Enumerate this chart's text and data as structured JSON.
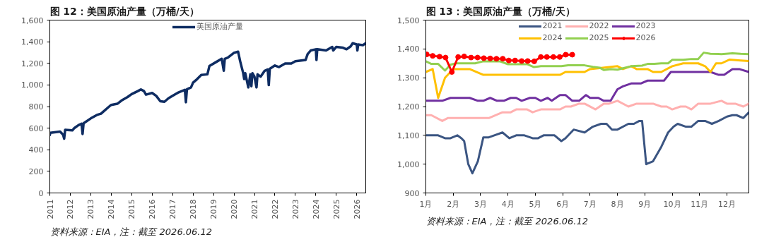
{
  "chart_data": [
    {
      "type": "line",
      "title": "图 12：美国原油产量（万桶/天）",
      "annotations": [
        "资料来源：EIA，注：截至 2026.06.12"
      ],
      "legend": "top",
      "grid": false,
      "xlim": [
        2011,
        2026.44
      ],
      "xticks": [
        2011,
        2012,
        2013,
        2014,
        2015,
        2016,
        2017,
        2018,
        2019,
        2020,
        2021,
        2022,
        2023,
        2024,
        2025,
        2026
      ],
      "ylim": [
        0,
        1600
      ],
      "yticks": [
        0,
        200,
        400,
        600,
        800,
        {
          "value": 1000,
          "label": "1,000"
        },
        {
          "value": 1200,
          "label": "1,200"
        },
        {
          "value": 1400,
          "label": "1,400"
        },
        {
          "value": 1600,
          "label": "1,600"
        }
      ],
      "series": [
        {
          "name": "美国原油产量",
          "color": "#0e2c62",
          "x": [
            2011.0,
            2011.02,
            2011.5,
            2011.65,
            2011.7,
            2011.75,
            2012.1,
            2012.2,
            2012.4,
            2012.55,
            2012.6,
            2012.65,
            2013.0,
            2013.3,
            2013.5,
            2013.9,
            2014.0,
            2014.3,
            2014.5,
            2014.8,
            2015.0,
            2015.3,
            2015.45,
            2015.6,
            2015.7,
            2016.0,
            2016.2,
            2016.4,
            2016.6,
            2016.8,
            2017.0,
            2017.3,
            2017.6,
            2017.65,
            2017.7,
            2017.9,
            2018.0,
            2018.2,
            2018.4,
            2018.7,
            2018.8,
            2019.1,
            2019.4,
            2019.5,
            2019.55,
            2019.7,
            2020.0,
            2020.2,
            2020.3,
            2020.45,
            2020.5,
            2020.55,
            2020.7,
            2020.8,
            2020.85,
            2020.9,
            2021.0,
            2021.1,
            2021.15,
            2021.3,
            2021.5,
            2021.65,
            2021.7,
            2021.75,
            2022.0,
            2022.2,
            2022.5,
            2022.8,
            2023.0,
            2023.5,
            2023.6,
            2023.75,
            2024.0,
            2024.03,
            2024.07,
            2024.5,
            2024.8,
            2024.85,
            2025.0,
            2025.3,
            2025.5,
            2025.7,
            2025.8,
            2026.0,
            2026.03,
            2026.07,
            2026.3,
            2026.44
          ],
          "values": [
            535,
            557,
            568,
            539,
            502,
            585,
            579,
            601,
            628,
            641,
            546,
            645,
            690,
            722,
            734,
            800,
            815,
            826,
            855,
            888,
            915,
            943,
            959,
            943,
            910,
            926,
            899,
            849,
            844,
            877,
            899,
            932,
            955,
            840,
            959,
            977,
            1021,
            1054,
            1092,
            1098,
            1176,
            1209,
            1242,
            1131,
            1242,
            1253,
            1297,
            1308,
            1220,
            1109,
            1054,
            1109,
            977,
            1098,
            988,
            1109,
            1076,
            977,
            1098,
            1076,
            1131,
            1143,
            999,
            1149,
            1180,
            1165,
            1198,
            1198,
            1220,
            1231,
            1286,
            1319,
            1330,
            1231,
            1330,
            1319,
            1352,
            1319,
            1352,
            1346,
            1330,
            1357,
            1386,
            1375,
            1319,
            1375,
            1368,
            1386
          ]
        }
      ]
    },
    {
      "type": "line",
      "title": "图 13：美国原油产量（万桶/天）",
      "annotations": [
        "资料来源：EIA，注：截至 2026.06.12"
      ],
      "legend": "top",
      "grid": false,
      "xlim": [
        1,
        12.8
      ],
      "xticks": [
        {
          "value": 1,
          "label": "1月"
        },
        {
          "value": 2,
          "label": "2月"
        },
        {
          "value": 3,
          "label": "3月"
        },
        {
          "value": 4,
          "label": "4月"
        },
        {
          "value": 5,
          "label": "5月"
        },
        {
          "value": 6,
          "label": "6月"
        },
        {
          "value": 7,
          "label": "7月"
        },
        {
          "value": 8,
          "label": "8月"
        },
        {
          "value": 9,
          "label": "9月"
        },
        {
          "value": 10,
          "label": "10月"
        },
        {
          "value": 11,
          "label": "11月"
        },
        {
          "value": 12,
          "label": "12月"
        }
      ],
      "ylim": [
        900,
        1500
      ],
      "yticks": [
        900,
        {
          "value": 1000,
          "label": "1,000"
        },
        {
          "value": 1100,
          "label": "1,100"
        },
        {
          "value": 1200,
          "label": "1,200"
        },
        {
          "value": 1300,
          "label": "1,300"
        },
        {
          "value": 1400,
          "label": "1,400"
        },
        {
          "value": 1500,
          "label": "1,500"
        }
      ],
      "series": [
        {
          "name": "2021",
          "color": "#3b5582",
          "x": [
            1,
            1.45,
            1.7,
            1.9,
            2.15,
            2.3,
            2.4,
            2.55,
            2.7,
            2.9,
            3.1,
            3.3,
            3.5,
            3.8,
            4.05,
            4.3,
            4.6,
            4.9,
            5.1,
            5.3,
            5.7,
            5.95,
            6.1,
            6.4,
            6.8,
            7.1,
            7.4,
            7.6,
            7.8,
            8.0,
            8.4,
            8.6,
            8.8,
            8.9,
            9.05,
            9.3,
            9.6,
            9.85,
            10.05,
            10.2,
            10.5,
            10.7,
            10.95,
            11.2,
            11.45,
            11.7,
            12.0,
            12.2,
            12.35,
            12.6,
            12.8
          ],
          "values": [
            1100,
            1100,
            1090,
            1090,
            1100,
            1090,
            1080,
            1000,
            968,
            1010,
            1093,
            1093,
            1100,
            1110,
            1090,
            1100,
            1100,
            1090,
            1090,
            1100,
            1100,
            1080,
            1090,
            1120,
            1110,
            1130,
            1140,
            1140,
            1120,
            1120,
            1140,
            1140,
            1150,
            1150,
            1000,
            1010,
            1060,
            1110,
            1130,
            1140,
            1130,
            1130,
            1150,
            1150,
            1140,
            1150,
            1165,
            1170,
            1170,
            1160,
            1180
          ]
        },
        {
          "name": "2022",
          "color": "#ffb0b0",
          "x": [
            1,
            1.2,
            1.6,
            1.8,
            2.3,
            3.0,
            3.3,
            3.8,
            4.1,
            4.3,
            4.7,
            4.9,
            5.2,
            5.9,
            6.1,
            6.3,
            6.6,
            6.8,
            7.2,
            7.5,
            7.7,
            8.0,
            8.4,
            8.7,
            9.3,
            9.6,
            9.8,
            10.0,
            10.3,
            10.5,
            10.7,
            10.95,
            11.4,
            11.8,
            12.0,
            12.3,
            12.6,
            12.8
          ],
          "values": [
            1170,
            1170,
            1150,
            1160,
            1160,
            1160,
            1160,
            1180,
            1180,
            1190,
            1190,
            1180,
            1190,
            1190,
            1200,
            1200,
            1210,
            1210,
            1190,
            1210,
            1210,
            1220,
            1200,
            1210,
            1210,
            1200,
            1200,
            1190,
            1200,
            1200,
            1190,
            1210,
            1210,
            1220,
            1210,
            1210,
            1200,
            1210
          ]
        },
        {
          "name": "2023",
          "color": "#7030a0",
          "x": [
            1,
            1.6,
            1.9,
            2.6,
            2.9,
            3.1,
            3.35,
            3.6,
            3.85,
            4.1,
            4.3,
            4.5,
            4.8,
            5.0,
            5.2,
            5.45,
            5.6,
            5.9,
            6.1,
            6.35,
            6.6,
            6.85,
            7.0,
            7.3,
            7.5,
            7.75,
            8.0,
            8.2,
            8.5,
            8.85,
            9.1,
            9.5,
            9.7,
            9.95,
            10.2,
            11.4,
            11.7,
            11.9,
            12.2,
            12.45,
            12.8
          ],
          "values": [
            1220,
            1220,
            1230,
            1230,
            1220,
            1220,
            1230,
            1220,
            1220,
            1230,
            1230,
            1220,
            1230,
            1230,
            1220,
            1230,
            1220,
            1240,
            1240,
            1220,
            1220,
            1240,
            1230,
            1230,
            1220,
            1220,
            1260,
            1270,
            1280,
            1280,
            1290,
            1290,
            1290,
            1320,
            1320,
            1320,
            1310,
            1310,
            1330,
            1330,
            1320
          ]
        },
        {
          "name": "2024",
          "color": "#ffc000",
          "x": [
            1,
            1.25,
            1.45,
            1.7,
            2.0,
            2.6,
            3.1,
            5.9,
            6.1,
            6.8,
            7.0,
            8.0,
            8.2,
            8.5,
            8.7,
            9.1,
            9.3,
            9.6,
            10.0,
            10.4,
            10.95,
            11.2,
            11.4,
            11.6,
            11.8,
            12.1,
            12.5,
            12.8
          ],
          "values": [
            1320,
            1330,
            1230,
            1300,
            1330,
            1330,
            1310,
            1310,
            1320,
            1320,
            1330,
            1340,
            1330,
            1340,
            1330,
            1330,
            1320,
            1320,
            1340,
            1350,
            1350,
            1340,
            1320,
            1350,
            1350,
            1363,
            1360,
            1358
          ]
        },
        {
          "name": "2025",
          "color": "#92d050",
          "x": [
            1,
            1.2,
            1.45,
            1.7,
            1.9,
            2.1,
            2.8,
            3.1,
            3.7,
            4.0,
            4.7,
            4.95,
            5.2,
            5.6,
            5.95,
            6.2,
            6.8,
            7.1,
            7.35,
            7.5,
            7.75,
            8.0,
            8.2,
            8.5,
            8.9,
            9.1,
            9.35,
            9.6,
            9.85,
            10.0,
            10.4,
            10.7,
            10.95,
            11.15,
            11.4,
            11.8,
            12.2,
            12.5,
            12.8
          ],
          "values": [
            1357,
            1348,
            1348,
            1325,
            1345,
            1350,
            1350,
            1357,
            1357,
            1347,
            1347,
            1337,
            1340,
            1340,
            1340,
            1343,
            1343,
            1338,
            1335,
            1327,
            1330,
            1328,
            1333,
            1340,
            1342,
            1348,
            1348,
            1350,
            1350,
            1362,
            1362,
            1365,
            1365,
            1387,
            1383,
            1382,
            1385,
            1383,
            1382
          ]
        },
        {
          "name": "2026",
          "color": "#ff0000",
          "marker": "circle",
          "x": [
            1.03,
            1.25,
            1.5,
            1.72,
            1.95,
            2.18,
            2.4,
            2.65,
            2.89,
            3.12,
            3.35,
            3.58,
            3.81,
            4.03,
            4.26,
            4.5,
            4.72,
            4.96,
            5.2,
            5.42,
            5.66,
            5.89,
            6.11,
            6.35
          ],
          "values": [
            1381,
            1376,
            1373,
            1370,
            1320,
            1372,
            1374,
            1370,
            1370,
            1368,
            1367,
            1366,
            1366,
            1360,
            1360,
            1358,
            1358,
            1357,
            1372,
            1372,
            1372,
            1372,
            1380,
            1380
          ]
        }
      ]
    }
  ]
}
